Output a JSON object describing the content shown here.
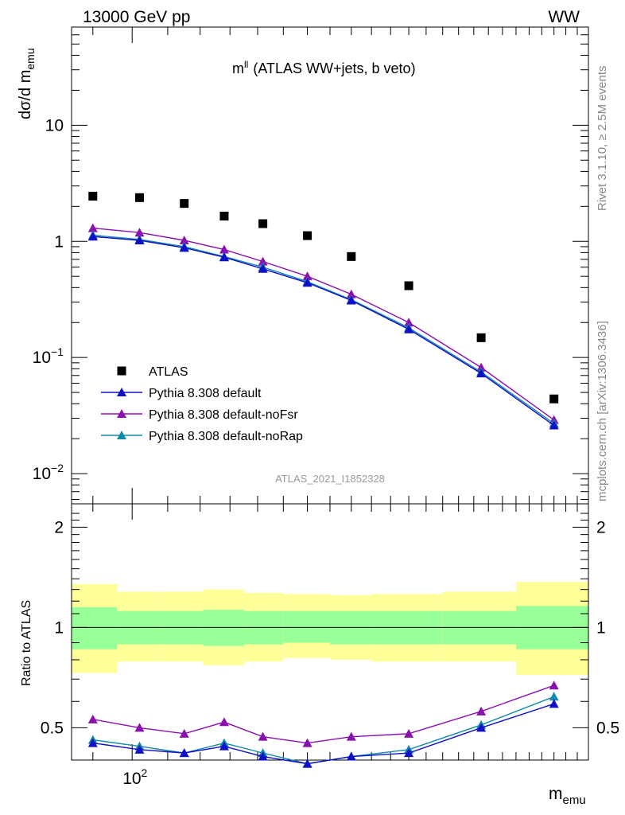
{
  "header": {
    "left_label": "13000 GeV pp",
    "right_label": "WW",
    "plot_title_main": "m",
    "plot_title_sup": "ll",
    "plot_title_rest": "(ATLAS WW+jets, b veto)",
    "side_label_rivet": "Rivet 3.1.10, ≥ 2.5M events",
    "side_label_mcplots": "mcplots.cern.ch [arXiv:1306.3436]",
    "watermark": "ATLAS_2021_I1852328"
  },
  "axes": {
    "ylabel_main": "dσ/d m",
    "ylabel_main_sub": "emu",
    "ylabel_ratio": "Ratio to ATLAS",
    "xlabel": "m",
    "xlabel_sub": "emu",
    "x_tick_label": "10",
    "x_tick_label_sup": "2",
    "main_tick_labels": [
      {
        "value": 10,
        "base": "10",
        "sup": ""
      },
      {
        "value": 1,
        "base": "1",
        "sup": ""
      },
      {
        "value": 0.1,
        "base": "10",
        "sup": "−1"
      },
      {
        "value": 0.01,
        "base": "10",
        "sup": "−2"
      }
    ],
    "ratio_tick_labels": [
      "2",
      "1",
      "0.5"
    ]
  },
  "legend": [
    {
      "label": "ATLAS",
      "color": "#000000",
      "marker": "square"
    },
    {
      "label": "Pythia 8.308 default",
      "color": "#1010c8",
      "marker": "triangle"
    },
    {
      "label": "Pythia 8.308 default-noFsr",
      "color": "#8a10b0",
      "marker": "triangle"
    },
    {
      "label": "Pythia 8.308 default-noRap",
      "color": "#108aa8",
      "marker": "triangle"
    }
  ],
  "chart_data": {
    "type": "scatter",
    "x_scale": "log",
    "y_scale": "log",
    "xlim": [
      85,
      340
    ],
    "ylim": [
      0.0055,
      70
    ],
    "ratio_ylim": [
      0.4,
      2.35
    ],
    "x": [
      90,
      102,
      115,
      128,
      142,
      160,
      180,
      210,
      255,
      310
    ],
    "series": [
      {
        "name": "ATLAS",
        "values": [
          2.45,
          2.38,
          2.12,
          1.65,
          1.42,
          1.12,
          0.74,
          0.415,
          0.148,
          0.044
        ],
        "ratio": [
          1,
          1,
          1,
          1,
          1,
          1,
          1,
          1,
          1,
          1
        ]
      },
      {
        "name": "Pythia 8.308 default",
        "values": [
          1.1,
          1.02,
          0.88,
          0.73,
          0.58,
          0.44,
          0.31,
          0.175,
          0.073,
          0.026
        ],
        "ratio": [
          0.45,
          0.43,
          0.42,
          0.44,
          0.41,
          0.39,
          0.41,
          0.42,
          0.5,
          0.59
        ]
      },
      {
        "name": "Pythia 8.308 default-noFsr",
        "values": [
          1.3,
          1.19,
          1.02,
          0.85,
          0.67,
          0.5,
          0.35,
          0.2,
          0.082,
          0.029
        ],
        "ratio": [
          0.53,
          0.5,
          0.48,
          0.52,
          0.47,
          0.45,
          0.47,
          0.48,
          0.56,
          0.67
        ]
      },
      {
        "name": "Pythia 8.308 default-noRap",
        "values": [
          1.13,
          1.04,
          0.9,
          0.74,
          0.6,
          0.45,
          0.315,
          0.18,
          0.075,
          0.027
        ],
        "ratio": [
          0.46,
          0.44,
          0.42,
          0.45,
          0.42,
          0.39,
          0.41,
          0.43,
          0.51,
          0.62
        ]
      }
    ],
    "ratio_bands": {
      "bin_edges": [
        85,
        96,
        108,
        121,
        135,
        150,
        170,
        190,
        230,
        280,
        340
      ],
      "green_low": [
        0.86,
        0.89,
        0.89,
        0.88,
        0.89,
        0.9,
        0.89,
        0.89,
        0.89,
        0.86
      ],
      "green_high": [
        1.15,
        1.12,
        1.12,
        1.13,
        1.12,
        1.12,
        1.12,
        1.12,
        1.12,
        1.16
      ],
      "yellow_low": [
        0.73,
        0.79,
        0.79,
        0.77,
        0.79,
        0.81,
        0.8,
        0.79,
        0.79,
        0.72
      ],
      "yellow_high": [
        1.35,
        1.28,
        1.28,
        1.3,
        1.27,
        1.26,
        1.25,
        1.26,
        1.28,
        1.37
      ],
      "green_color": "#99ff99",
      "yellow_color": "#ffff99"
    }
  }
}
